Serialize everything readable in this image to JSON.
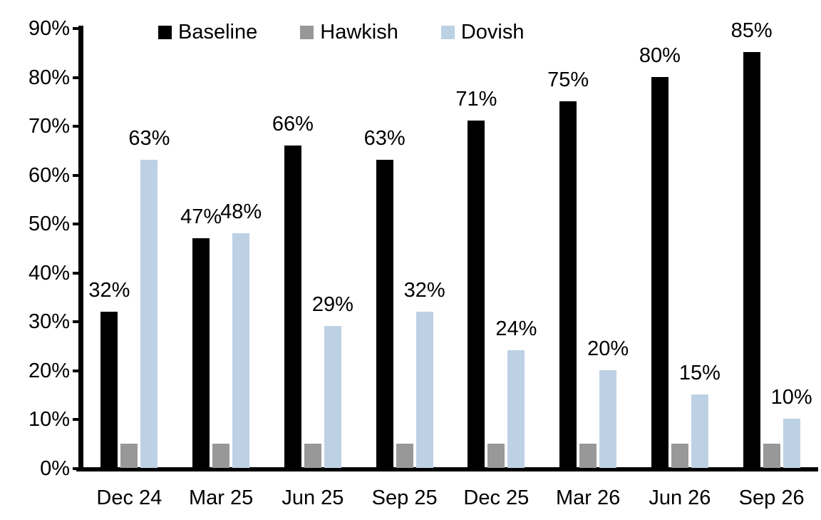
{
  "chart_data": {
    "type": "bar",
    "title": "",
    "xlabel": "",
    "ylabel": "",
    "categories": [
      "Dec 24",
      "Mar 25",
      "Jun 25",
      "Sep 25",
      "Dec 25",
      "Mar 26",
      "Jun 26",
      "Sep 26"
    ],
    "series": [
      {
        "name": "Baseline",
        "color": "#000000",
        "values": [
          32,
          47,
          66,
          63,
          71,
          75,
          80,
          85
        ],
        "labels": [
          "32%",
          "47%",
          "66%",
          "63%",
          "71%",
          "75%",
          "80%",
          "85%"
        ],
        "show_labels": true
      },
      {
        "name": "Hawkish",
        "color": "#989898",
        "values": [
          5,
          5,
          5,
          5,
          5,
          5,
          5,
          5
        ],
        "labels": [],
        "show_labels": false
      },
      {
        "name": "Dovish",
        "color": "#BDD1E5",
        "values": [
          63,
          48,
          29,
          32,
          24,
          20,
          15,
          10
        ],
        "labels": [
          "63%",
          "48%",
          "29%",
          "32%",
          "24%",
          "20%",
          "15%",
          "10%"
        ],
        "show_labels": true
      }
    ],
    "ylim": [
      0,
      90
    ],
    "ytick_step": 10,
    "ytick_labels": [
      "0%",
      "10%",
      "20%",
      "30%",
      "40%",
      "50%",
      "60%",
      "70%",
      "80%",
      "90%"
    ],
    "grid": false,
    "legend_position": "top-center",
    "axis_color": "#000000",
    "background_color": "#FFFFFF",
    "label_color": "#000000"
  }
}
